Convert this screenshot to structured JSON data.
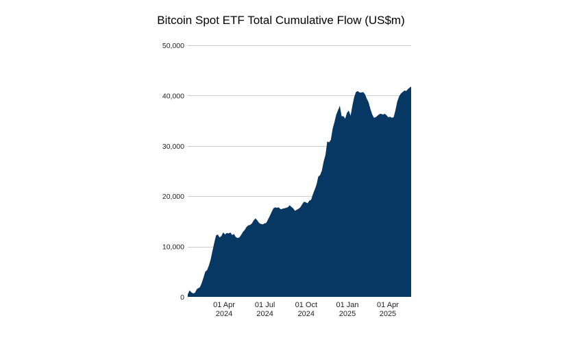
{
  "chart_data": {
    "type": "area",
    "title": "Bitcoin Spot ETF Total Cumulative Flow (US$m)",
    "xlabel": "",
    "ylabel": "",
    "ylim": [
      0,
      50000
    ],
    "yticks": [
      {
        "value": 0,
        "label": "0"
      },
      {
        "value": 10000,
        "label": "10,000"
      },
      {
        "value": 20000,
        "label": "20,000"
      },
      {
        "value": 30000,
        "label": "30,000"
      },
      {
        "value": 40000,
        "label": "40,000"
      },
      {
        "value": 50000,
        "label": "50,000"
      }
    ],
    "xlim": [
      "2024-01-11",
      "2025-05-23"
    ],
    "xticks": [
      {
        "date": "2024-04-01",
        "label_line1": "01 Apr",
        "label_line2": "2024"
      },
      {
        "date": "2024-07-01",
        "label_line1": "01 Jul",
        "label_line2": "2024"
      },
      {
        "date": "2024-10-01",
        "label_line1": "01 Oct",
        "label_line2": "2024"
      },
      {
        "date": "2025-01-01",
        "label_line1": "01 Jan",
        "label_line2": "2025"
      },
      {
        "date": "2025-04-01",
        "label_line1": "01 Apr",
        "label_line2": "2025"
      }
    ],
    "grid": true,
    "legend": "none",
    "fill_color": "#073763",
    "gridline_color": "#cccccc",
    "series": [
      {
        "x": [
          "2024-01-11",
          "2024-01-15",
          "2024-01-19",
          "2024-01-23",
          "2024-01-27",
          "2024-01-31",
          "2024-02-03",
          "2024-02-07",
          "2024-02-11",
          "2024-02-15",
          "2024-02-19",
          "2024-02-23",
          "2024-02-27",
          "2024-03-02",
          "2024-03-06",
          "2024-03-10",
          "2024-03-14",
          "2024-03-18",
          "2024-03-22",
          "2024-03-26",
          "2024-03-30",
          "2024-04-03",
          "2024-04-07",
          "2024-04-11",
          "2024-04-15",
          "2024-04-19",
          "2024-04-23",
          "2024-04-27",
          "2024-05-01",
          "2024-05-05",
          "2024-05-09",
          "2024-05-13",
          "2024-05-17",
          "2024-05-21",
          "2024-05-25",
          "2024-05-29",
          "2024-06-02",
          "2024-06-06",
          "2024-06-10",
          "2024-06-14",
          "2024-06-18",
          "2024-06-22",
          "2024-06-26",
          "2024-06-30",
          "2024-07-04",
          "2024-07-08",
          "2024-07-12",
          "2024-07-16",
          "2024-07-20",
          "2024-07-24",
          "2024-07-28",
          "2024-08-01",
          "2024-08-05",
          "2024-08-09",
          "2024-08-13",
          "2024-08-17",
          "2024-08-21",
          "2024-08-25",
          "2024-08-29",
          "2024-09-02",
          "2024-09-06",
          "2024-09-10",
          "2024-09-14",
          "2024-09-18",
          "2024-09-22",
          "2024-09-26",
          "2024-09-30",
          "2024-10-04",
          "2024-10-08",
          "2024-10-12",
          "2024-10-16",
          "2024-10-20",
          "2024-10-24",
          "2024-10-28",
          "2024-11-01",
          "2024-11-05",
          "2024-11-09",
          "2024-11-13",
          "2024-11-17",
          "2024-11-21",
          "2024-11-25",
          "2024-11-29",
          "2024-12-03",
          "2024-12-07",
          "2024-12-11",
          "2024-12-15",
          "2024-12-19",
          "2024-12-23",
          "2024-12-27",
          "2024-12-31",
          "2025-01-04",
          "2025-01-08",
          "2025-01-12",
          "2025-01-16",
          "2025-01-20",
          "2025-01-24",
          "2025-01-28",
          "2025-02-01",
          "2025-02-05",
          "2025-02-09",
          "2025-02-13",
          "2025-02-17",
          "2025-02-21",
          "2025-02-25",
          "2025-03-01",
          "2025-03-05",
          "2025-03-09",
          "2025-03-13",
          "2025-03-17",
          "2025-03-21",
          "2025-03-25",
          "2025-03-29",
          "2025-04-02",
          "2025-04-06",
          "2025-04-10",
          "2025-04-14",
          "2025-04-18",
          "2025-04-22",
          "2025-04-26",
          "2025-04-30",
          "2025-05-04",
          "2025-05-08",
          "2025-05-12",
          "2025-05-16",
          "2025-05-20",
          "2025-05-23"
        ],
        "y": [
          500,
          1300,
          900,
          700,
          800,
          1500,
          1700,
          1900,
          2700,
          3800,
          5000,
          5300,
          6200,
          7400,
          9100,
          10700,
          12200,
          12400,
          11800,
          12100,
          12800,
          12400,
          12700,
          12600,
          12800,
          12300,
          12500,
          11900,
          11700,
          11800,
          12300,
          12900,
          13300,
          13900,
          14200,
          14300,
          14600,
          15200,
          15600,
          15200,
          14700,
          14500,
          14400,
          14600,
          14700,
          15400,
          16100,
          16900,
          17600,
          17800,
          17700,
          17800,
          17400,
          17500,
          17600,
          17700,
          17800,
          18200,
          17900,
          17600,
          17100,
          17300,
          17500,
          17800,
          18400,
          18900,
          18800,
          18600,
          19100,
          19300,
          20400,
          21300,
          22300,
          23900,
          24200,
          25100,
          26900,
          28200,
          30900,
          30700,
          31200,
          33400,
          34700,
          36200,
          37100,
          38000,
          35900,
          35900,
          35400,
          36600,
          37000,
          36000,
          38000,
          39700,
          40700,
          40900,
          40600,
          40600,
          40700,
          40300,
          39400,
          38700,
          37400,
          36300,
          35600,
          35700,
          36000,
          36300,
          36400,
          36200,
          36400,
          36100,
          35700,
          35800,
          35600,
          35700,
          37100,
          38800,
          39800,
          40400,
          40700,
          41000,
          40900,
          41300,
          41600,
          41800
        ]
      }
    ]
  }
}
